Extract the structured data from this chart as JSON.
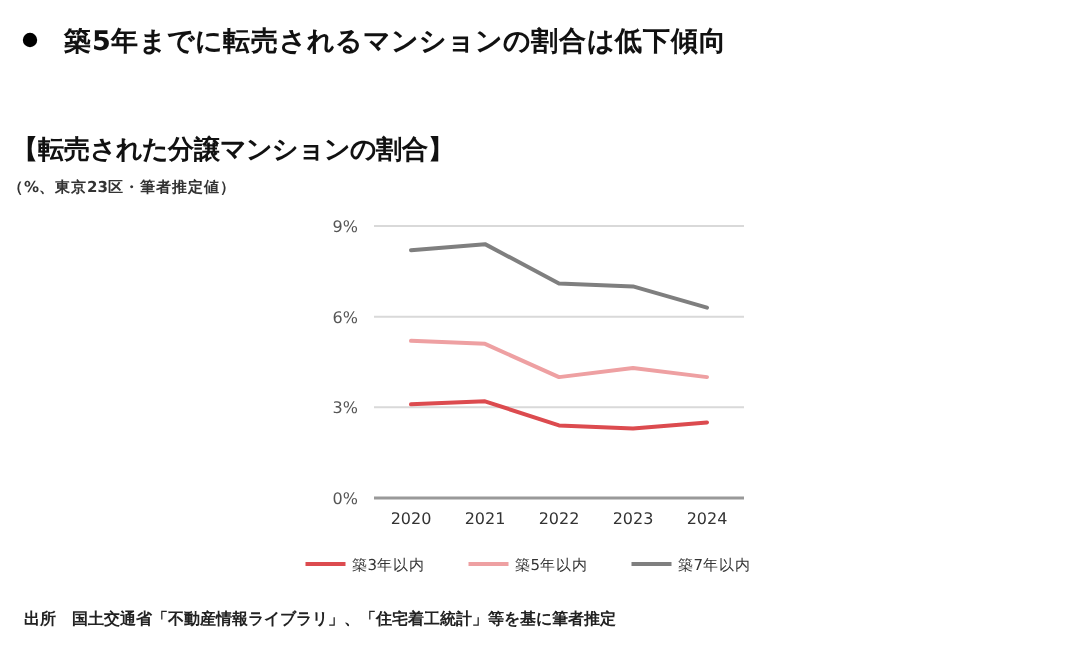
{
  "chart_data": {
    "type": "line",
    "title": "築5年までに転売されるマンションの割合は低下傾向",
    "subtitle": "【転売された分譲マンションの割合】",
    "categories": [
      "2020",
      "2021",
      "2022",
      "2023",
      "2024"
    ],
    "series": [
      {
        "name": "築3年以内",
        "color": "#dc4b4f",
        "values": [
          3.1,
          3.2,
          2.4,
          2.3,
          2.5
        ]
      },
      {
        "name": "築5年以内",
        "color": "#eea0a2",
        "values": [
          5.2,
          5.1,
          4.0,
          4.3,
          4.0
        ]
      },
      {
        "name": "築7年以内",
        "color": "#7f7f7f",
        "values": [
          8.2,
          8.4,
          7.1,
          7.0,
          6.3
        ]
      }
    ],
    "ylim": [
      0,
      9
    ],
    "yticks": [
      {
        "value": 0,
        "label": "0%"
      },
      {
        "value": 3,
        "label": "3%"
      },
      {
        "value": 6,
        "label": "6%"
      },
      {
        "value": 9,
        "label": "9%"
      }
    ],
    "grid": "y",
    "legend": "bottom",
    "marker": "none",
    "line_style": "solid",
    "annotations": [
      "（%、東京23区・筆者推定値）",
      "出所　国土交通省「不動産情報ライブラリ」、「住宅着工統計」等を基に筆者推定"
    ]
  }
}
